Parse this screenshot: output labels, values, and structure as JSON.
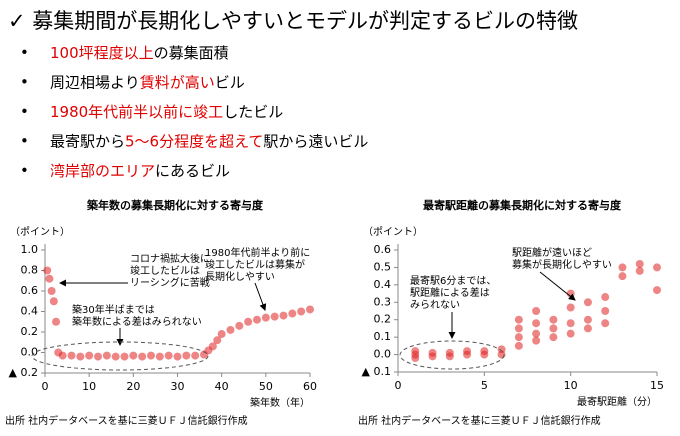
{
  "slide": {
    "title": "✓ 募集期間が長期化しやすいとモデルが判定するビルの特徴",
    "bullets": [
      [
        {
          "text": "100坪程度以上",
          "color": "#e00000"
        },
        {
          "text": "の募集面積",
          "color": "#000000"
        }
      ],
      [
        {
          "text": "周辺相場より",
          "color": "#000000"
        },
        {
          "text": "賃料が高い",
          "color": "#e00000"
        },
        {
          "text": "ビル",
          "color": "#000000"
        }
      ],
      [
        {
          "text": "1980年代前半以前に竣工",
          "color": "#e00000"
        },
        {
          "text": "したビル",
          "color": "#000000"
        }
      ],
      [
        {
          "text": "最寄駅から",
          "color": "#000000"
        },
        {
          "text": "5～6分程度を超えて",
          "color": "#e00000"
        },
        {
          "text": "駅から遠いビル",
          "color": "#000000"
        }
      ],
      [
        {
          "text": "湾岸部のエリア",
          "color": "#e00000"
        },
        {
          "text": "にあるビル",
          "color": "#000000"
        }
      ]
    ]
  },
  "chart_data": [
    {
      "type": "scatter",
      "title": "築年数の募集長期化に対する寄与度",
      "y_label": "（ポイント）",
      "x_label": "築年数（年）",
      "xlim": [
        0,
        60
      ],
      "xticks": [
        0,
        10,
        20,
        30,
        40,
        50,
        60
      ],
      "ylim": [
        -0.2,
        1.0
      ],
      "yticks": [
        {
          "value": -0.2,
          "label": "▲ 0.2"
        },
        {
          "value": 0,
          "label": "0.0"
        },
        0.2,
        0.4,
        0.6,
        0.8,
        {
          "value": 1,
          "label": "1.0"
        }
      ],
      "series": [
        {
          "color": "#e02020",
          "x": [
            0.5,
            1,
            1.5,
            2,
            2.5,
            3,
            4,
            6,
            8,
            10,
            12,
            14,
            16,
            18,
            20,
            22,
            24,
            26,
            28,
            30,
            32,
            34,
            36,
            37,
            38,
            39,
            40,
            42,
            44,
            46,
            48,
            50,
            52,
            54,
            56,
            58,
            60
          ],
          "values": [
            0.8,
            0.72,
            0.6,
            0.5,
            0.3,
            0.0,
            -0.03,
            -0.03,
            -0.04,
            -0.03,
            -0.04,
            -0.03,
            -0.04,
            -0.04,
            -0.03,
            -0.04,
            -0.03,
            -0.04,
            -0.03,
            -0.04,
            -0.03,
            -0.03,
            -0.02,
            0.02,
            0.06,
            0.12,
            0.18,
            0.22,
            0.26,
            0.3,
            0.32,
            0.34,
            0.35,
            0.36,
            0.38,
            0.4,
            0.42
          ]
        }
      ],
      "annotations": [
        [
          "コロナ禍拡大後に",
          "竣工したビルは",
          "リーシングに苦戦"
        ],
        [
          "築30年半ばまでは",
          "築年数による差はみられない"
        ],
        [
          "1980年代前半より前に",
          "竣工したビルは募集が",
          "長期化しやすい"
        ]
      ],
      "source": "出所 社内データベースを基に三菱ＵＦＪ信託銀行作成"
    },
    {
      "type": "scatter",
      "title": "最寄駅距離の募集長期化に対する寄与度",
      "y_label": "（ポイント）",
      "x_label": "最寄駅距離（分）",
      "xlim": [
        0,
        15
      ],
      "xticks": [
        0,
        5,
        10,
        15
      ],
      "ylim": [
        -0.1,
        0.6
      ],
      "yticks": [
        {
          "value": -0.1,
          "label": "▲ 0.1"
        },
        {
          "value": 0,
          "label": "0.0"
        },
        0.1,
        0.2,
        0.3,
        0.4,
        0.5,
        0.6
      ],
      "series": [
        {
          "color": "#e02020",
          "x": [
            1,
            1,
            1,
            2,
            2,
            3,
            3,
            4,
            4,
            5,
            5,
            6,
            6,
            7,
            7,
            7,
            7,
            8,
            8,
            8,
            8,
            9,
            9,
            9,
            10,
            10,
            10,
            10,
            11,
            11,
            11,
            12,
            12,
            12,
            13,
            13,
            14,
            14,
            15,
            15
          ],
          "values": [
            -0.02,
            0.0,
            0.02,
            -0.01,
            0.01,
            -0.01,
            0.01,
            0.0,
            0.02,
            0.0,
            0.02,
            0.0,
            0.03,
            0.05,
            0.1,
            0.15,
            0.2,
            0.08,
            0.12,
            0.18,
            0.25,
            0.1,
            0.15,
            0.2,
            0.12,
            0.18,
            0.27,
            0.35,
            0.15,
            0.2,
            0.3,
            0.18,
            0.25,
            0.33,
            0.45,
            0.5,
            0.48,
            0.52,
            0.37,
            0.5
          ]
        }
      ],
      "annotations": [
        [
          "駅距離が遠いほど",
          "募集が長期化しやすい"
        ],
        [
          "最寄駅6分までは、",
          "駅距離による差は",
          "みられない"
        ]
      ],
      "source": "出所 社内データベースを基に三菱ＵＦＪ信託銀行作成"
    }
  ]
}
